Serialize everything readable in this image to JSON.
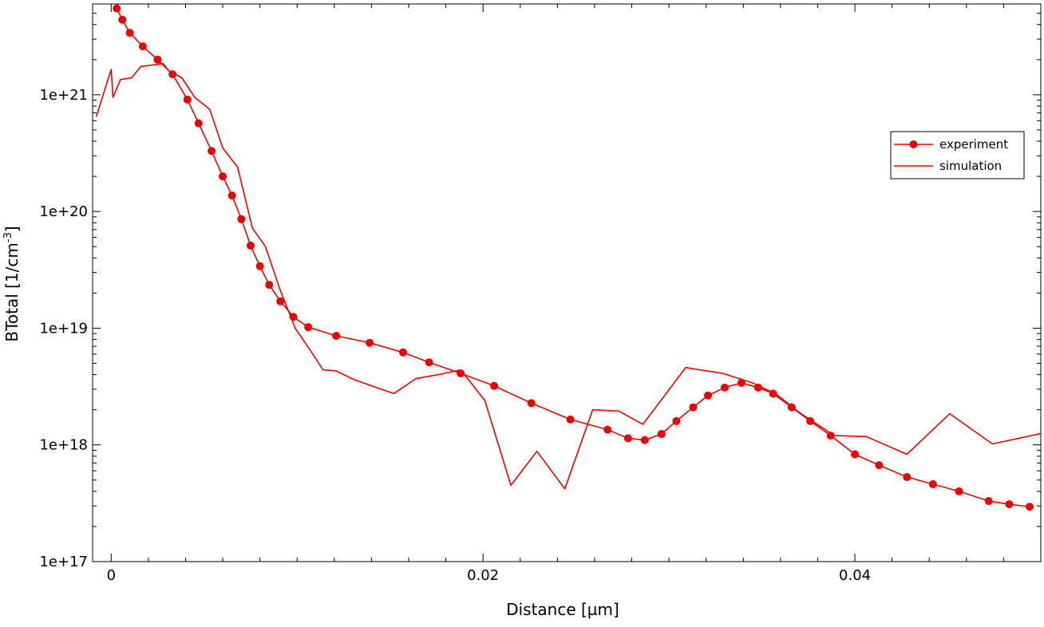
{
  "chart_data": {
    "type": "line",
    "xlabel": "Distance [µm]",
    "ylabel": "BTotal [1/cm",
    "ylabel_sup": "-3",
    "ylabel_end": "]",
    "xlim": [
      -0.001,
      0.05
    ],
    "ylim": [
      1e+17,
      6e+21
    ],
    "yscale": "log",
    "x_ticks": [
      {
        "value": 0,
        "label": "0"
      },
      {
        "value": 0.02,
        "label": "0.02"
      },
      {
        "value": 0.04,
        "label": "0.04"
      }
    ],
    "y_ticks": [
      {
        "value": 1e+17,
        "label": "1e+17"
      },
      {
        "value": 1e+18,
        "label": "1e+18"
      },
      {
        "value": 1e+19,
        "label": "1e+19"
      },
      {
        "value": 1e+20,
        "label": "1e+20"
      },
      {
        "value": 1e+21,
        "label": "1e+21"
      }
    ],
    "legend_position": "top-right",
    "series": [
      {
        "name": "experiment",
        "color": "#ee0000",
        "marker": "circle",
        "x": [
          0.0003,
          0.0006,
          0.001,
          0.0017,
          0.0025,
          0.0033,
          0.0041,
          0.0047,
          0.0054,
          0.006,
          0.0065,
          0.007,
          0.0075,
          0.008,
          0.0085,
          0.0091,
          0.0098,
          0.0106,
          0.0121,
          0.0139,
          0.0157,
          0.0171,
          0.0188,
          0.0206,
          0.0226,
          0.0247,
          0.0267,
          0.0278,
          0.0287,
          0.0296,
          0.0304,
          0.0313,
          0.0321,
          0.033,
          0.0339,
          0.0348,
          0.0356,
          0.0366,
          0.0376,
          0.0387,
          0.04,
          0.0413,
          0.0428,
          0.0442,
          0.0456,
          0.0472,
          0.0483,
          0.0494
        ],
        "y": [
          5.5e+21,
          4.4e+21,
          3.4e+21,
          2.6e+21,
          2e+21,
          1.5e+21,
          9.1e+20,
          5.7e+20,
          3.3e+20,
          2e+20,
          1.37e+20,
          8.6e+19,
          5.1e+19,
          3.4e+19,
          2.35e+19,
          1.7e+19,
          1.25e+19,
          1.02e+19,
          8.6e+18,
          7.5e+18,
          6.2e+18,
          5.1e+18,
          4.1e+18,
          3.2e+18,
          2.28e+18,
          1.65e+18,
          1.35e+18,
          1.14e+18,
          1.1e+18,
          1.24e+18,
          1.6e+18,
          2.1e+18,
          2.65e+18,
          3.1e+18,
          3.4e+18,
          3.1e+18,
          2.75e+18,
          2.1e+18,
          1.6e+18,
          1.2e+18,
          8.3e+17,
          6.7e+17,
          5.3e+17,
          4.6e+17,
          4e+17,
          3.3e+17,
          3.1e+17,
          2.95e+17
        ]
      },
      {
        "name": "simulation",
        "color": "#ee0000",
        "marker": "none",
        "x": [
          -0.0008,
          0,
          0.0001,
          0.0005,
          0.0011,
          0.0016,
          0.0028,
          0.0031,
          0.0038,
          0.0045,
          0.0053,
          0.006,
          0.0068,
          0.0076,
          0.0083,
          0.0091,
          0.0099,
          0.0107,
          0.0114,
          0.0121,
          0.0131,
          0.0152,
          0.0164,
          0.0176,
          0.0188,
          0.0201,
          0.0215,
          0.0229,
          0.0244,
          0.0259,
          0.0273,
          0.0286,
          0.0309,
          0.0329,
          0.0345,
          0.0358,
          0.0371,
          0.0389,
          0.0406,
          0.0428,
          0.0451,
          0.0474,
          0.05
        ],
        "y": [
          6.5e+20,
          1.65e+21,
          9.5e+20,
          1.35e+21,
          1.4e+21,
          1.75e+21,
          1.85e+21,
          1.6e+21,
          1.4e+21,
          9.5e+20,
          7.5e+20,
          3.5e+20,
          2.4e+20,
          7.2e+19,
          5e+19,
          2.1e+19,
          1e+19,
          6.5e+18,
          4.4e+18,
          4.3e+18,
          3.6e+18,
          2.75e+18,
          3.7e+18,
          4e+18,
          4.4e+18,
          2.4e+18,
          4.5e+17,
          8.8e+17,
          4.2e+17,
          2e+18,
          1.95e+18,
          1.5e+18,
          4.6e+18,
          4.1e+18,
          3.4e+18,
          2.7e+18,
          1.85e+18,
          1.2e+18,
          1.18e+18,
          8.3e+17,
          1.85e+18,
          1.02e+18,
          1.25e+18
        ]
      }
    ]
  }
}
